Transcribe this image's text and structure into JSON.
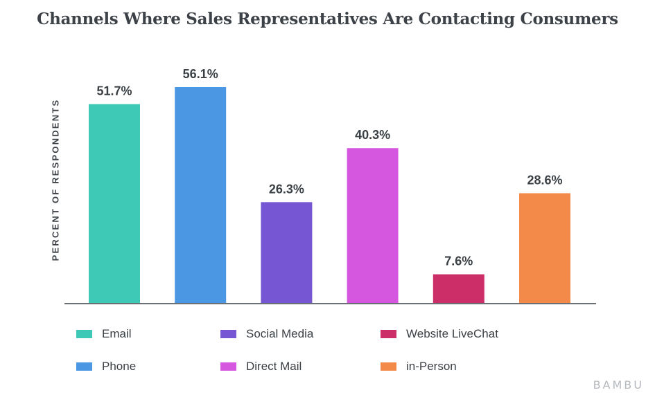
{
  "chart_data": {
    "type": "bar",
    "title": "Channels Where Sales Representatives Are Contacting Consumers",
    "xlabel": "",
    "ylabel": "PERCENT OF RESPONDENTS",
    "categories": [
      "Email",
      "Phone",
      "Social Media",
      "Direct Mail",
      "Website LiveChat",
      "in-Person"
    ],
    "values": [
      51.7,
      56.1,
      26.3,
      40.3,
      7.6,
      28.6
    ],
    "value_labels": [
      "51.7%",
      "56.1%",
      "26.3%",
      "40.3%",
      "7.6%",
      "28.6%"
    ],
    "colors": [
      "#3ec9b6",
      "#4c97e3",
      "#7656d2",
      "#d657df",
      "#cc2e68",
      "#f48a4a"
    ],
    "ylim": [
      0,
      56.1
    ],
    "grid": false,
    "legend_position": "bottom"
  },
  "legend": {
    "items": [
      {
        "label": "Email",
        "color": "#3ec9b6"
      },
      {
        "label": "Phone",
        "color": "#4c97e3"
      },
      {
        "label": "Social Media",
        "color": "#7656d2"
      },
      {
        "label": "Direct Mail",
        "color": "#d657df"
      },
      {
        "label": "Website LiveChat",
        "color": "#cc2e68"
      },
      {
        "label": "in-Person",
        "color": "#f48a4a"
      }
    ]
  },
  "watermark": "BAMBU",
  "axis_color": "#6b7075"
}
